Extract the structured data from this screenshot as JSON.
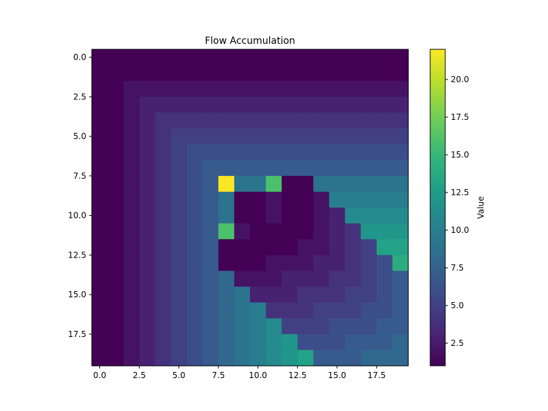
{
  "chart_data": {
    "type": "heatmap",
    "title": "Flow Accumulation",
    "colorbar_label": "Value",
    "colormap": "viridis",
    "value_range": [
      1,
      22
    ],
    "x_range": [
      -0.5,
      19.5
    ],
    "y_range": [
      -0.5,
      19.5
    ],
    "y_axis_inverted": true,
    "x_ticks": [
      "0.0",
      "2.5",
      "5.0",
      "7.5",
      "10.0",
      "12.5",
      "15.0",
      "17.5"
    ],
    "y_ticks": [
      "0.0",
      "2.5",
      "5.0",
      "7.5",
      "10.0",
      "12.5",
      "15.0",
      "17.5"
    ],
    "colorbar_ticks": [
      "2.5",
      "5.0",
      "7.5",
      "10.0",
      "12.5",
      "15.0",
      "17.5",
      "20.0"
    ],
    "matrix": [
      [
        1,
        1,
        1,
        1,
        1,
        1,
        1,
        1,
        1,
        1,
        1,
        1,
        1,
        1,
        1,
        1,
        1,
        1,
        1,
        1
      ],
      [
        1,
        1,
        1,
        1,
        1,
        1,
        1,
        1,
        1,
        1,
        1,
        1,
        1,
        1,
        1,
        1,
        1,
        1,
        1,
        1
      ],
      [
        1,
        1,
        2,
        2,
        2,
        2,
        2,
        2,
        2,
        2,
        2,
        2,
        2,
        2,
        2,
        2,
        2,
        2,
        2,
        2
      ],
      [
        1,
        1,
        2,
        3,
        3,
        3,
        3,
        3,
        3,
        3,
        3,
        3,
        3,
        3,
        3,
        3,
        3,
        3,
        3,
        3
      ],
      [
        1,
        1,
        2,
        3,
        4,
        4,
        4,
        4,
        4,
        4,
        4,
        4,
        4,
        4,
        4,
        4,
        4,
        4,
        4,
        4
      ],
      [
        1,
        1,
        2,
        3,
        4,
        5,
        5,
        5,
        5,
        5,
        5,
        5,
        5,
        5,
        5,
        5,
        5,
        5,
        5,
        5
      ],
      [
        1,
        1,
        2,
        3,
        4,
        5,
        6,
        6,
        6,
        6,
        6,
        6,
        6,
        6,
        6,
        6,
        6,
        6,
        6,
        6
      ],
      [
        1,
        1,
        2,
        3,
        4,
        5,
        6,
        7,
        7,
        7,
        7,
        7,
        7,
        7,
        7,
        7,
        7,
        7,
        7,
        7
      ],
      [
        1,
        1,
        2,
        3,
        4,
        5,
        6,
        7,
        22,
        9,
        9,
        16,
        1,
        1,
        9,
        9,
        9,
        9,
        9,
        9
      ],
      [
        1,
        1,
        2,
        3,
        4,
        5,
        6,
        7,
        9,
        1,
        1,
        2,
        1,
        1,
        2,
        10,
        10,
        10,
        10,
        10
      ],
      [
        1,
        1,
        2,
        3,
        4,
        5,
        6,
        7,
        9,
        1,
        1,
        2,
        1,
        1,
        2,
        3,
        11,
        11,
        11,
        11
      ],
      [
        1,
        1,
        2,
        3,
        4,
        5,
        6,
        7,
        16,
        2,
        1,
        1,
        1,
        1,
        2,
        3,
        4,
        12,
        12,
        12
      ],
      [
        1,
        1,
        2,
        3,
        4,
        5,
        6,
        7,
        1,
        1,
        1,
        1,
        1,
        2,
        2,
        3,
        4,
        5,
        13,
        13
      ],
      [
        1,
        1,
        2,
        3,
        4,
        5,
        6,
        7,
        1,
        1,
        1,
        2,
        2,
        2,
        3,
        3,
        4,
        5,
        6,
        14
      ],
      [
        1,
        1,
        2,
        3,
        4,
        5,
        6,
        7,
        8,
        2,
        2,
        2,
        3,
        3,
        3,
        4,
        4,
        5,
        6,
        7
      ],
      [
        1,
        1,
        2,
        3,
        4,
        5,
        6,
        7,
        8,
        9,
        3,
        3,
        3,
        4,
        4,
        4,
        5,
        5,
        6,
        7
      ],
      [
        1,
        1,
        2,
        3,
        4,
        5,
        6,
        7,
        8,
        9,
        10,
        4,
        4,
        4,
        5,
        5,
        5,
        6,
        6,
        7
      ],
      [
        1,
        1,
        2,
        3,
        4,
        5,
        6,
        7,
        8,
        9,
        10,
        11,
        5,
        5,
        5,
        6,
        6,
        6,
        7,
        7
      ],
      [
        1,
        1,
        2,
        3,
        4,
        5,
        6,
        7,
        8,
        9,
        10,
        11,
        12,
        6,
        6,
        6,
        7,
        7,
        7,
        8
      ],
      [
        1,
        1,
        2,
        3,
        4,
        5,
        6,
        7,
        8,
        9,
        10,
        11,
        12,
        13,
        7,
        7,
        7,
        8,
        8,
        8
      ]
    ]
  }
}
